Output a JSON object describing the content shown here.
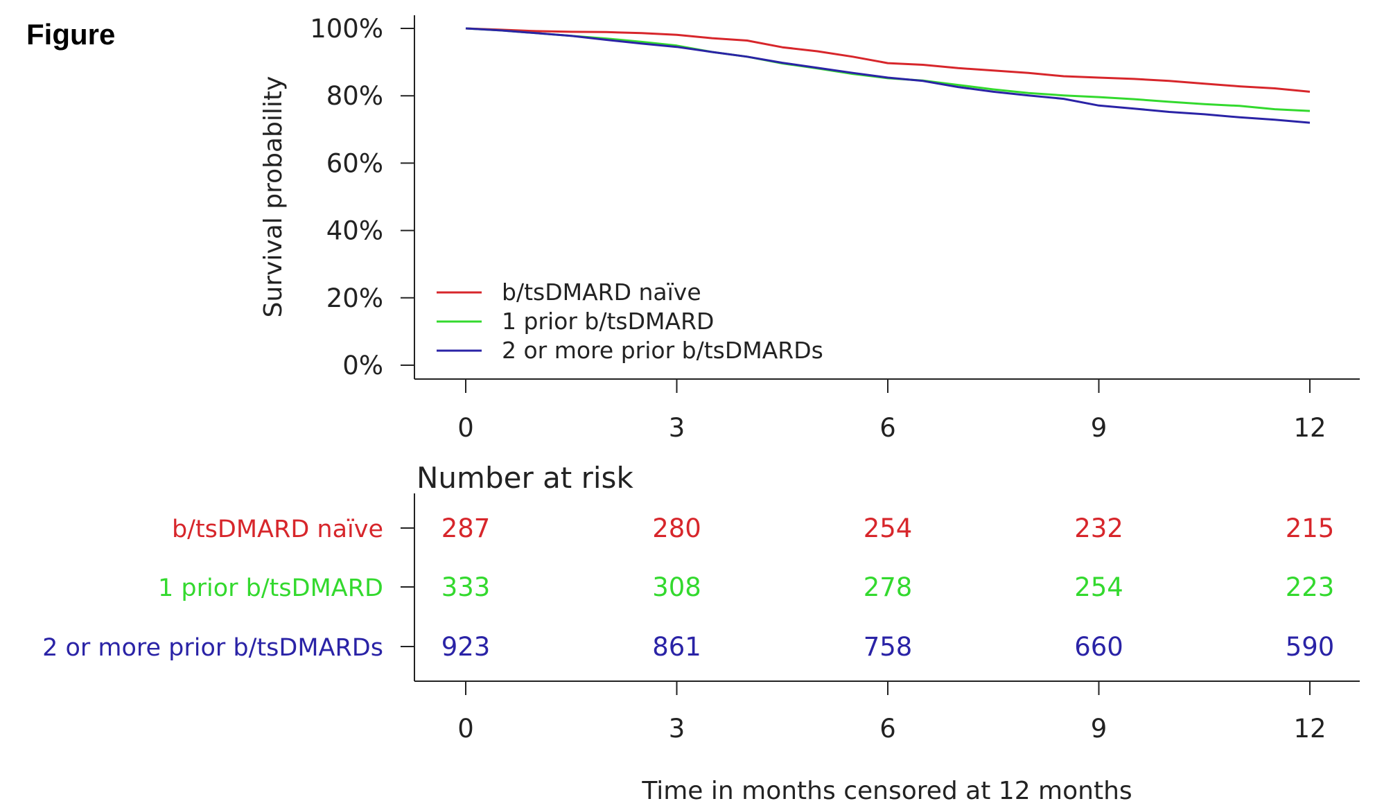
{
  "figure_label": "Figure",
  "colors": {
    "b/tsDMARD naïve": "#d7262b",
    "1 prior b/tsDMARD": "#33d92e",
    "2 or more prior b/tsDMARDs": "#2a23a6"
  },
  "chart_data": [
    {
      "type": "line",
      "ylabel": "Survival probability",
      "xlabel": "",
      "x_ticks": [
        0,
        3,
        6,
        9,
        12
      ],
      "y_ticks": [
        0,
        20,
        40,
        60,
        80,
        100
      ],
      "y_tick_labels": [
        "0%",
        "20%",
        "40%",
        "60%",
        "80%",
        "100%"
      ],
      "xlim": [
        0,
        12
      ],
      "ylim": [
        0,
        100
      ],
      "legend_placement": "bottom-left",
      "grid": false,
      "series": [
        {
          "name": "b/tsDMARD naïve",
          "points": [
            [
              0,
              100
            ],
            [
              0.5,
              99.6
            ],
            [
              1,
              99.2
            ],
            [
              1.5,
              99
            ],
            [
              2,
              98.9
            ],
            [
              2.5,
              98.6
            ],
            [
              3,
              98.1
            ],
            [
              3.5,
              97.1
            ],
            [
              4,
              96.4
            ],
            [
              4.5,
              94.4
            ],
            [
              5,
              93.2
            ],
            [
              5.5,
              91.6
            ],
            [
              6,
              89.7
            ],
            [
              6.5,
              89.2
            ],
            [
              7,
              88.2
            ],
            [
              7.5,
              87.5
            ],
            [
              8,
              86.8
            ],
            [
              8.5,
              85.8
            ],
            [
              9,
              85.4
            ],
            [
              9.5,
              85
            ],
            [
              10,
              84.4
            ],
            [
              10.5,
              83.6
            ],
            [
              11,
              82.8
            ],
            [
              11.5,
              82.2
            ],
            [
              12,
              81.2
            ]
          ]
        },
        {
          "name": "1 prior b/tsDMARD",
          "points": [
            [
              0,
              100
            ],
            [
              0.5,
              99.4
            ],
            [
              1,
              98.6
            ],
            [
              1.5,
              97.8
            ],
            [
              2,
              97
            ],
            [
              2.5,
              96
            ],
            [
              3,
              94.9
            ],
            [
              3.5,
              93
            ],
            [
              4,
              91.6
            ],
            [
              4.5,
              89.6
            ],
            [
              5,
              88.1
            ],
            [
              5.5,
              86.5
            ],
            [
              6,
              85.2
            ],
            [
              6.5,
              84.5
            ],
            [
              7,
              83.2
            ],
            [
              7.5,
              81.9
            ],
            [
              8,
              80.8
            ],
            [
              8.5,
              80.1
            ],
            [
              9,
              79.6
            ],
            [
              9.5,
              79
            ],
            [
              10,
              78.2
            ],
            [
              10.5,
              77.5
            ],
            [
              11,
              77
            ],
            [
              11.5,
              76
            ],
            [
              12,
              75.5
            ]
          ]
        },
        {
          "name": "2 or more prior b/tsDMARDs",
          "points": [
            [
              0,
              100
            ],
            [
              0.5,
              99.4
            ],
            [
              1,
              98.6
            ],
            [
              1.5,
              97.8
            ],
            [
              2,
              96.6
            ],
            [
              2.5,
              95.5
            ],
            [
              3,
              94.5
            ],
            [
              3.5,
              93
            ],
            [
              4,
              91.6
            ],
            [
              4.5,
              89.8
            ],
            [
              5,
              88.3
            ],
            [
              5.5,
              86.8
            ],
            [
              6,
              85.4
            ],
            [
              6.5,
              84.4
            ],
            [
              7,
              82.6
            ],
            [
              7.5,
              81.2
            ],
            [
              8,
              80.1
            ],
            [
              8.5,
              79.1
            ],
            [
              9,
              77.1
            ],
            [
              9.5,
              76.2
            ],
            [
              10,
              75.2
            ],
            [
              10.5,
              74.5
            ],
            [
              11,
              73.6
            ],
            [
              11.5,
              72.9
            ],
            [
              12,
              72
            ]
          ]
        }
      ]
    },
    {
      "type": "table",
      "title": "Number at risk",
      "xlabel": "Time in months censored at 12 months",
      "x_ticks": [
        0,
        3,
        6,
        9,
        12
      ],
      "rows": [
        {
          "name": "b/tsDMARD naïve",
          "values": [
            287,
            280,
            254,
            232,
            215
          ]
        },
        {
          "name": "1 prior b/tsDMARD",
          "values": [
            333,
            308,
            278,
            254,
            223
          ]
        },
        {
          "name": "2 or more prior b/tsDMARDs",
          "values": [
            923,
            861,
            758,
            660,
            590
          ]
        }
      ]
    }
  ]
}
